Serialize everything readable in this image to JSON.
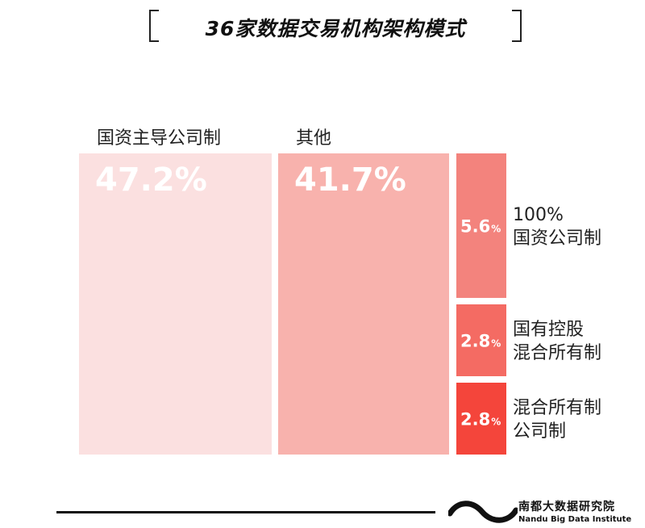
{
  "title": "36家数据交易机构架构模式",
  "chart_data": {
    "type": "treemap",
    "unit": "%",
    "segments": [
      {
        "name": "国资主导公司制",
        "value": 47.2,
        "label": "47.2%",
        "color": "#fbe0e0"
      },
      {
        "name": "其他",
        "value": 41.7,
        "label": "41.7%",
        "color": "#f8b2ad"
      },
      {
        "name_lines": [
          "100%",
          "国资公司制"
        ],
        "value": 5.6,
        "label_num": "5.6",
        "label_unit": "%",
        "color": "#f3837d"
      },
      {
        "name_lines": [
          "国有控股",
          "混合所有制"
        ],
        "value": 2.8,
        "label_num": "2.8",
        "label_unit": "%",
        "color": "#f46b63"
      },
      {
        "name_lines": [
          "混合所有制",
          "公司制"
        ],
        "value": 2.8,
        "label_num": "2.8",
        "label_unit": "%",
        "color": "#f4453b"
      }
    ]
  },
  "footer": {
    "org_cn": "南都大数据研究院",
    "org_en": "Nandu Big Data Institute"
  }
}
